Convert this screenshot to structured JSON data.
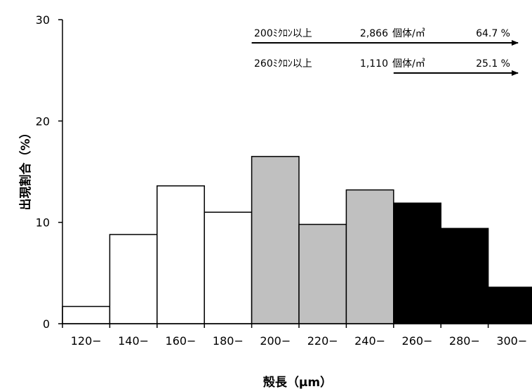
{
  "chart_data": {
    "type": "bar",
    "ylabel": "出現割合（%）",
    "xlabel": "殻長（μm）",
    "ylim": [
      0,
      30
    ],
    "yticks": [
      0,
      10,
      20,
      30
    ],
    "categories": [
      "120−",
      "140−",
      "160−",
      "180−",
      "200−",
      "220−",
      "240−",
      "260−",
      "280−",
      "300−"
    ],
    "values": [
      1.7,
      8.8,
      13.6,
      11.0,
      16.5,
      9.8,
      13.2,
      11.9,
      9.4,
      3.6
    ],
    "fills": [
      "#ffffff",
      "#ffffff",
      "#ffffff",
      "#ffffff",
      "#c0c0c0",
      "#c0c0c0",
      "#c0c0c0",
      "#000000",
      "#000000",
      "#000000"
    ],
    "grid": false,
    "annotations": [
      {
        "label": "200ﾐｸﾛﾝ以上",
        "count": "2,866",
        "unit": "個体/㎥",
        "percent": "64.7 %",
        "arrow_from_category": 4
      },
      {
        "label": "260ﾐｸﾛﾝ以上",
        "count": "1,110",
        "unit": "個体/㎥",
        "percent": "25.1 %",
        "arrow_from_category": 7
      }
    ]
  }
}
